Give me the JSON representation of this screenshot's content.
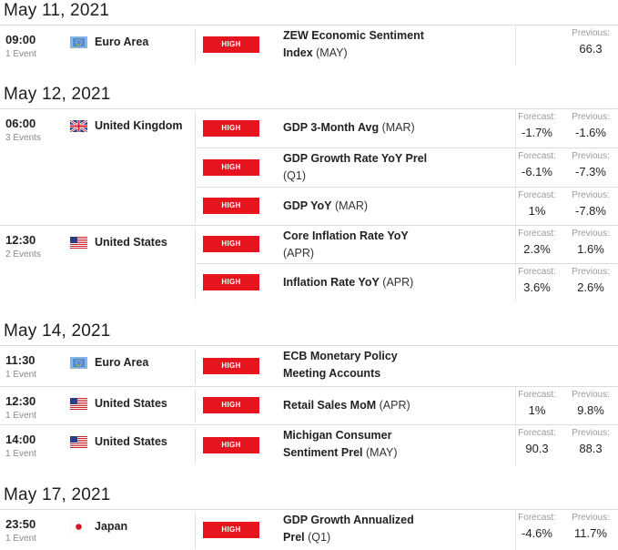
{
  "days": [
    {
      "date": "May 11, 2021"
    },
    {
      "date": "May 12, 2021"
    },
    {
      "date": "May 14, 2021"
    },
    {
      "date": "May 17, 2021"
    }
  ],
  "labels": {
    "forecast": "Forecast:",
    "previous": "Previous:"
  },
  "groups": [
    {
      "time": "09:00",
      "count": "1 Event",
      "country": "Euro Area",
      "flag": "euro-area-flag-icon",
      "events": [
        {
          "impact": "HIGH",
          "name": "ZEW Economic Sentiment Index",
          "period": "(MAY)",
          "previous": "66.3"
        }
      ]
    },
    {
      "time": "06:00",
      "count": "3 Events",
      "country": "United Kingdom",
      "flag": "uk-flag-icon",
      "events": [
        {
          "impact": "HIGH",
          "name": "GDP 3-Month Avg",
          "period": "(MAR)",
          "forecast": "-1.7%",
          "previous": "-1.6%"
        },
        {
          "impact": "HIGH",
          "name": "GDP Growth Rate YoY Prel",
          "period": "(Q1)",
          "forecast": "-6.1%",
          "previous": "-7.3%"
        },
        {
          "impact": "HIGH",
          "name": "GDP YoY",
          "period": "(MAR)",
          "forecast": "1%",
          "previous": "-7.8%"
        }
      ]
    },
    {
      "time": "12:30",
      "count": "2 Events",
      "country": "United States",
      "flag": "us-flag-icon",
      "events": [
        {
          "impact": "HIGH",
          "name": "Core Inflation Rate YoY",
          "period": "(APR)",
          "forecast": "2.3%",
          "previous": "1.6%"
        },
        {
          "impact": "HIGH",
          "name": "Inflation Rate YoY",
          "period": "(APR)",
          "forecast": "3.6%",
          "previous": "2.6%"
        }
      ]
    },
    {
      "time": "11:30",
      "count": "1 Event",
      "country": "Euro Area",
      "flag": "euro-area-flag-icon",
      "events": [
        {
          "impact": "HIGH",
          "name": "ECB Monetary Policy Meeting Accounts",
          "period": ""
        }
      ]
    },
    {
      "time": "12:30",
      "count": "1 Event",
      "country": "United States",
      "flag": "us-flag-icon",
      "events": [
        {
          "impact": "HIGH",
          "name": "Retail Sales MoM",
          "period": "(APR)",
          "forecast": "1%",
          "previous": "9.8%"
        }
      ]
    },
    {
      "time": "14:00",
      "count": "1 Event",
      "country": "United States",
      "flag": "us-flag-icon",
      "events": [
        {
          "impact": "HIGH",
          "name": "Michigan Consumer Sentiment Prel",
          "period": "(MAY)",
          "forecast": "90.3",
          "previous": "88.3"
        }
      ]
    },
    {
      "time": "23:50",
      "count": "1 Event",
      "country": "Japan",
      "flag": "japan-flag-icon",
      "events": [
        {
          "impact": "HIGH",
          "name": "GDP Growth Annualized Prel",
          "period": "(Q1)",
          "forecast": "-4.6%",
          "previous": "11.7%"
        }
      ]
    }
  ]
}
